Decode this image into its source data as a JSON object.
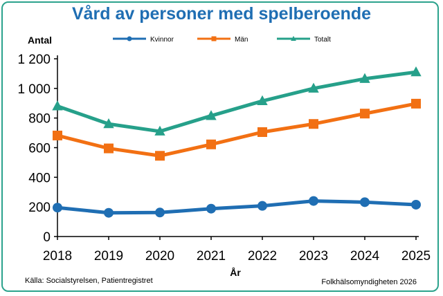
{
  "chart_data": {
    "type": "line",
    "title": "Vård av personer med spelberoende",
    "ylabel": "Antal",
    "xlabel": "År",
    "x": [
      "2018",
      "2019",
      "2020",
      "2021",
      "2022",
      "2023",
      "2024",
      "2025"
    ],
    "ylim": [
      0,
      1200
    ],
    "yticks": [
      "0",
      "200",
      "400",
      "600",
      "800",
      "1 000",
      "1 200"
    ],
    "legend_position": "top",
    "grid": false,
    "series": [
      {
        "name": "Kvinnor",
        "color": "#1f6eb3",
        "marker": "circle",
        "values": [
          195,
          160,
          162,
          188,
          207,
          240,
          232,
          215
        ]
      },
      {
        "name": "Män",
        "color": "#f27013",
        "marker": "square",
        "values": [
          682,
          595,
          545,
          622,
          705,
          760,
          830,
          897
        ]
      },
      {
        "name": "Totalt",
        "color": "#26a08a",
        "marker": "triangle",
        "values": [
          880,
          760,
          710,
          815,
          915,
          1000,
          1065,
          1110
        ]
      }
    ]
  },
  "footer": {
    "source": "Källa: Socialstyrelsen, Patientregistret",
    "credit": "Folkhälsomyndigheten 2026"
  }
}
